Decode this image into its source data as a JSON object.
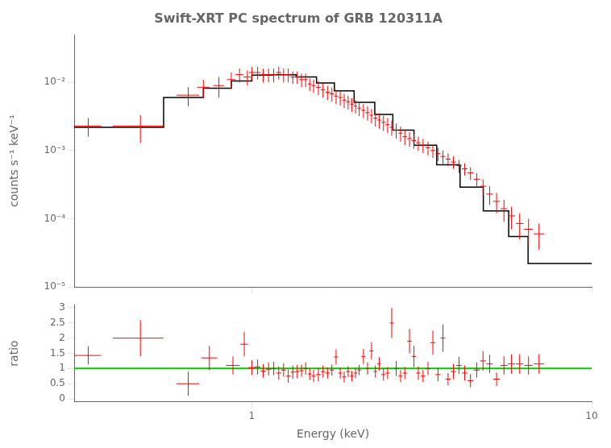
{
  "chart_data": [
    {
      "type": "scatter",
      "title": "Swift-XRT PC spectrum of GRB 120311A",
      "ylabel": "counts s⁻¹ keV⁻¹",
      "log": true,
      "xlim": [
        0.3,
        10.0
      ],
      "ylim": [
        1e-05,
        0.05
      ],
      "xticks": [
        1,
        10
      ],
      "yticks": [
        {
          "value": 1e-05,
          "label": "10⁻⁵"
        },
        {
          "value": 0.0001,
          "label": "10⁻⁴"
        },
        {
          "value": 0.001,
          "label": "10⁻³"
        },
        {
          "value": 0.01,
          "label": "10⁻²"
        }
      ],
      "tick_labels": "y",
      "grid": false,
      "series": [
        {
          "type": "scatter",
          "marker": "none",
          "color": "#ff0000",
          "x": [
            0.33,
            0.47,
            0.65,
            0.72,
            0.8,
            0.87,
            0.92,
            0.97,
            1.0,
            1.04,
            1.08,
            1.12,
            1.16,
            1.2,
            1.24,
            1.28,
            1.32,
            1.36,
            1.4,
            1.44,
            1.48,
            1.52,
            1.57,
            1.62,
            1.67,
            1.72,
            1.77,
            1.82,
            1.87,
            1.92,
            1.97,
            2.02,
            2.07,
            2.13,
            2.19,
            2.25,
            2.31,
            2.37,
            2.44,
            2.51,
            2.58,
            2.66,
            2.74,
            2.82,
            2.91,
            3.0,
            3.09,
            3.19,
            3.3,
            3.41,
            3.53,
            3.65,
            3.78,
            3.92,
            4.07,
            4.23,
            4.4,
            4.59,
            4.79,
            5.01,
            5.25,
            5.52,
            5.81,
            6.14,
            6.52,
            7.0
          ],
          "values": [
            0.0023,
            0.0023,
            0.0065,
            0.0085,
            0.009,
            0.011,
            0.013,
            0.012,
            0.014,
            0.014,
            0.013,
            0.013,
            0.013,
            0.014,
            0.013,
            0.013,
            0.012,
            0.012,
            0.011,
            0.011,
            0.0095,
            0.009,
            0.0085,
            0.0078,
            0.0072,
            0.0068,
            0.0063,
            0.006,
            0.0055,
            0.0052,
            0.0048,
            0.0045,
            0.0042,
            0.0039,
            0.0036,
            0.0033,
            0.003,
            0.0028,
            0.0026,
            0.0024,
            0.0022,
            0.002,
            0.0018,
            0.0016,
            0.0015,
            0.0014,
            0.0013,
            0.0012,
            0.0011,
            0.001,
            0.0009,
            0.00082,
            0.00075,
            0.00068,
            0.0006,
            0.00054,
            0.00047,
            0.00038,
            0.0003,
            0.00023,
            0.00018,
            0.00014,
            0.00011,
            8.5e-05,
            7e-05,
            6e-05
          ],
          "xerr": [
            0.03,
            0.08,
            0.05,
            0.03,
            0.03,
            0.025,
            0.025,
            0.025,
            0.02,
            0.02,
            0.02,
            0.02,
            0.02,
            0.02,
            0.02,
            0.02,
            0.02,
            0.02,
            0.02,
            0.02,
            0.02,
            0.02,
            0.025,
            0.025,
            0.025,
            0.025,
            0.025,
            0.025,
            0.025,
            0.025,
            0.025,
            0.025,
            0.025,
            0.03,
            0.03,
            0.03,
            0.03,
            0.03,
            0.035,
            0.035,
            0.035,
            0.04,
            0.04,
            0.04,
            0.045,
            0.045,
            0.045,
            0.05,
            0.055,
            0.055,
            0.06,
            0.06,
            0.065,
            0.07,
            0.075,
            0.08,
            0.085,
            0.095,
            0.1,
            0.11,
            0.12,
            0.13,
            0.14,
            0.16,
            0.19,
            0.25
          ],
          "yerr_lo": [
            0.0007,
            0.001,
            0.002,
            0.0025,
            0.003,
            0.003,
            0.003,
            0.003,
            0.003,
            0.003,
            0.003,
            0.003,
            0.003,
            0.003,
            0.003,
            0.003,
            0.0025,
            0.0025,
            0.0025,
            0.0025,
            0.002,
            0.002,
            0.002,
            0.0018,
            0.0017,
            0.0016,
            0.0015,
            0.0014,
            0.0013,
            0.0012,
            0.0011,
            0.001,
            0.001,
            0.0009,
            0.00085,
            0.0008,
            0.00075,
            0.0007,
            0.00065,
            0.0006,
            0.00055,
            0.0005,
            0.00045,
            0.0004,
            0.00037,
            0.00034,
            0.00031,
            0.00028,
            0.00025,
            0.00022,
            0.0002,
            0.00018,
            0.00016,
            0.00014,
            0.00013,
            0.00011,
            0.0001,
            9e-05,
            8e-05,
            7e-05,
            6e-05,
            5e-05,
            4e-05,
            3.5e-05,
            3e-05,
            2.5e-05
          ],
          "yerr_hi": [
            0.0007,
            0.001,
            0.002,
            0.0025,
            0.003,
            0.003,
            0.003,
            0.003,
            0.003,
            0.003,
            0.003,
            0.003,
            0.003,
            0.003,
            0.003,
            0.003,
            0.0025,
            0.0025,
            0.0025,
            0.0025,
            0.002,
            0.002,
            0.002,
            0.0018,
            0.0017,
            0.0016,
            0.0015,
            0.0014,
            0.0013,
            0.0012,
            0.0011,
            0.001,
            0.001,
            0.0009,
            0.00085,
            0.0008,
            0.00075,
            0.0007,
            0.00065,
            0.0006,
            0.00055,
            0.0005,
            0.00045,
            0.0004,
            0.00037,
            0.00034,
            0.00031,
            0.00028,
            0.00025,
            0.00022,
            0.0002,
            0.00018,
            0.00016,
            0.00014,
            0.00013,
            0.00011,
            0.0001,
            9e-05,
            8e-05,
            7e-05,
            6e-05,
            5e-05,
            4e-05,
            3.5e-05,
            3e-05,
            2.5e-05
          ]
        },
        {
          "type": "step",
          "color": "#000000",
          "x_edges": [
            0.3,
            0.4,
            0.55,
            0.72,
            0.87,
            1.0,
            1.15,
            1.35,
            1.55,
            1.75,
            2.0,
            2.3,
            2.6,
            3.0,
            3.5,
            4.1,
            4.8,
            5.7,
            6.5,
            7.5,
            10.0
          ],
          "values": [
            0.0022,
            0.0022,
            0.006,
            0.0082,
            0.0105,
            0.0128,
            0.013,
            0.012,
            0.0098,
            0.0075,
            0.0051,
            0.0034,
            0.002,
            0.0012,
            0.00062,
            0.00029,
            0.00013,
            5.5e-05,
            2.2e-05,
            2.2e-05
          ]
        }
      ]
    },
    {
      "type": "scatter",
      "xlabel": "Energy (keV)",
      "ylabel": "ratio",
      "log": "x",
      "xlim": [
        0.3,
        10.0
      ],
      "ylim": [
        -0.1,
        3.1
      ],
      "xticks": [
        1,
        10
      ],
      "yticks": [
        0,
        0.5,
        1,
        1.5,
        2,
        2.5,
        3
      ],
      "grid": false,
      "series": [
        {
          "type": "scatter",
          "marker": "none",
          "color": "#ff0000",
          "x": [
            0.33,
            0.47,
            0.65,
            0.75,
            0.88,
            0.95,
            1.0,
            1.04,
            1.08,
            1.12,
            1.16,
            1.2,
            1.24,
            1.28,
            1.32,
            1.36,
            1.4,
            1.44,
            1.48,
            1.52,
            1.57,
            1.62,
            1.67,
            1.72,
            1.77,
            1.82,
            1.87,
            1.92,
            1.97,
            2.02,
            2.07,
            2.13,
            2.19,
            2.25,
            2.31,
            2.37,
            2.44,
            2.51,
            2.58,
            2.66,
            2.74,
            2.82,
            2.91,
            3.0,
            3.09,
            3.19,
            3.3,
            3.41,
            3.53,
            3.65,
            3.78,
            3.92,
            4.07,
            4.23,
            4.4,
            4.59,
            4.79,
            5.01,
            5.25,
            5.52,
            5.81,
            6.14,
            6.52,
            7.0
          ],
          "values": [
            1.43,
            2.0,
            0.5,
            1.35,
            1.1,
            1.8,
            1.03,
            1.05,
            0.92,
            0.98,
            1.0,
            0.85,
            0.95,
            0.75,
            0.88,
            0.9,
            0.93,
            1.0,
            0.82,
            0.75,
            0.8,
            0.9,
            0.85,
            0.95,
            1.38,
            0.85,
            0.72,
            0.9,
            0.75,
            0.85,
            0.95,
            1.4,
            1.0,
            1.58,
            0.9,
            1.15,
            0.8,
            0.85,
            2.5,
            1.0,
            0.75,
            0.85,
            1.9,
            1.4,
            0.85,
            0.75,
            1.0,
            1.85,
            0.8,
            2.0,
            0.65,
            0.9,
            1.1,
            0.85,
            0.6,
            0.95,
            1.25,
            1.15,
            0.65,
            1.1,
            1.15,
            1.15,
            1.1,
            1.15
          ],
          "xerr": [
            0.03,
            0.08,
            0.05,
            0.04,
            0.04,
            0.025,
            0.025,
            0.02,
            0.02,
            0.02,
            0.02,
            0.02,
            0.02,
            0.02,
            0.02,
            0.02,
            0.02,
            0.02,
            0.02,
            0.02,
            0.025,
            0.025,
            0.025,
            0.025,
            0.025,
            0.025,
            0.025,
            0.025,
            0.025,
            0.025,
            0.025,
            0.03,
            0.03,
            0.03,
            0.03,
            0.03,
            0.035,
            0.035,
            0.035,
            0.04,
            0.04,
            0.04,
            0.045,
            0.045,
            0.045,
            0.05,
            0.055,
            0.055,
            0.06,
            0.06,
            0.065,
            0.07,
            0.075,
            0.08,
            0.085,
            0.095,
            0.1,
            0.11,
            0.12,
            0.13,
            0.14,
            0.16,
            0.19,
            0.25
          ],
          "yerr": [
            0.3,
            0.6,
            0.4,
            0.4,
            0.3,
            0.4,
            0.25,
            0.25,
            0.22,
            0.22,
            0.22,
            0.22,
            0.22,
            0.22,
            0.22,
            0.22,
            0.2,
            0.2,
            0.2,
            0.2,
            0.22,
            0.2,
            0.18,
            0.18,
            0.25,
            0.18,
            0.18,
            0.18,
            0.17,
            0.17,
            0.17,
            0.25,
            0.2,
            0.28,
            0.2,
            0.22,
            0.2,
            0.2,
            0.5,
            0.25,
            0.2,
            0.2,
            0.4,
            0.35,
            0.22,
            0.2,
            0.22,
            0.4,
            0.22,
            0.45,
            0.2,
            0.25,
            0.28,
            0.25,
            0.22,
            0.25,
            0.32,
            0.3,
            0.22,
            0.3,
            0.32,
            0.32,
            0.3,
            0.32
          ]
        },
        {
          "type": "hline",
          "color": "#00cc00",
          "values": [
            1.0
          ]
        }
      ]
    }
  ]
}
